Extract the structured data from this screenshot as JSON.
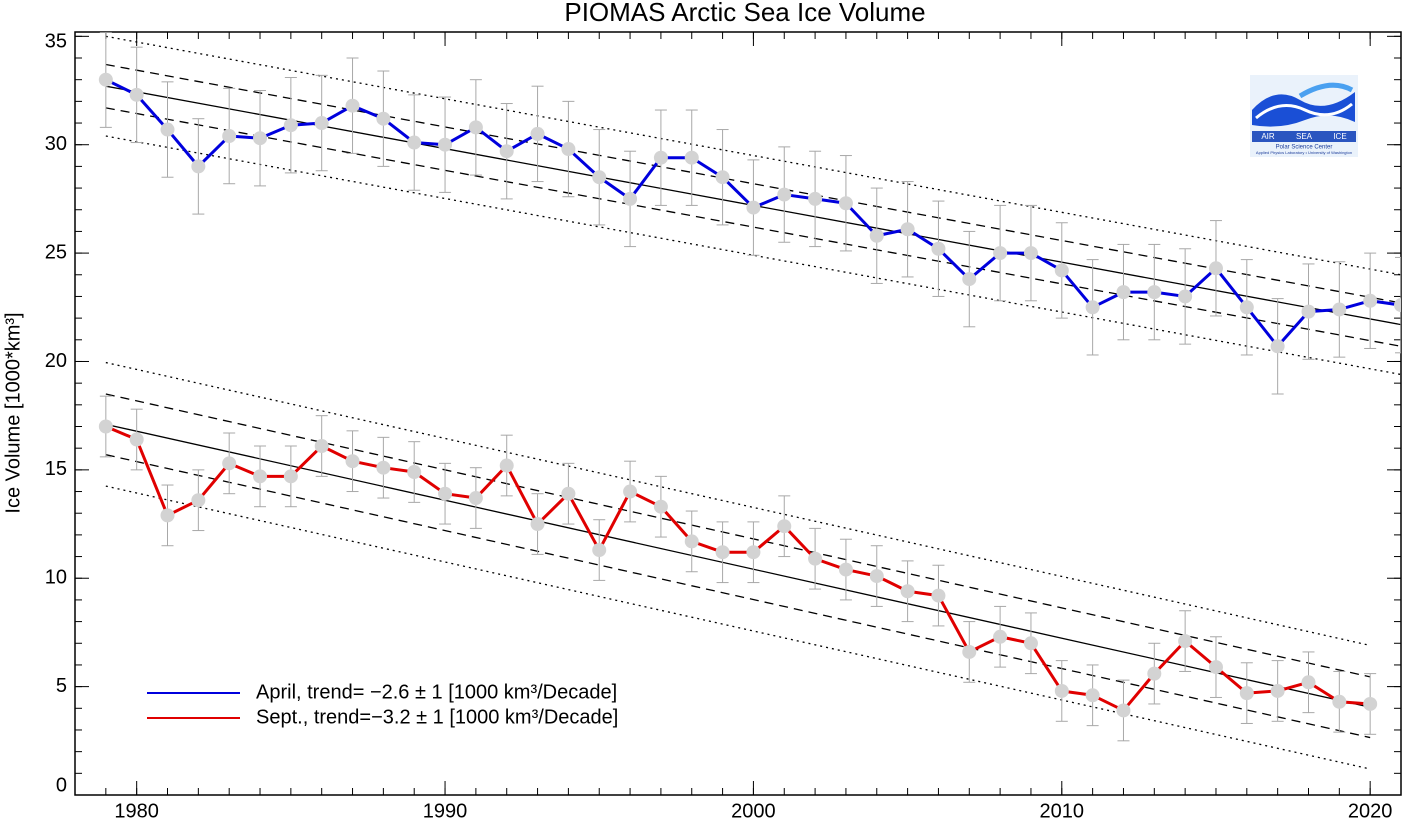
{
  "chart_data": {
    "type": "line",
    "title": "PIOMAS Arctic Sea Ice Volume",
    "y_label": "Ice Volume [1000*km³]",
    "xlim": [
      1978,
      2021
    ],
    "xticks": [
      1980,
      1990,
      2000,
      2010,
      2020
    ],
    "x_minor_step": 1,
    "ylim": [
      0,
      35.2
    ],
    "yticks": [
      0,
      5,
      10,
      15,
      20,
      25,
      30,
      35
    ],
    "y_minor_step": 1,
    "legend": "lower left",
    "marker_color": "#d3d3d3",
    "error_color": "#a8a8a8",
    "series": [
      {
        "name": "April, trend= −2.6 ± 1 [1000 km³/Decade]",
        "color": "#0000dd",
        "x": [
          1979,
          1980,
          1981,
          1982,
          1983,
          1984,
          1985,
          1986,
          1987,
          1988,
          1989,
          1990,
          1991,
          1992,
          1993,
          1994,
          1995,
          1996,
          1997,
          1998,
          1999,
          2000,
          2001,
          2002,
          2003,
          2004,
          2005,
          2006,
          2007,
          2008,
          2009,
          2010,
          2011,
          2012,
          2013,
          2014,
          2015,
          2016,
          2017,
          2018,
          2019,
          2020,
          2021
        ],
        "values": [
          33.0,
          32.3,
          30.7,
          29.0,
          30.4,
          30.3,
          30.9,
          31.0,
          31.8,
          31.2,
          30.1,
          30.0,
          30.8,
          29.7,
          30.5,
          29.8,
          28.5,
          27.5,
          29.4,
          29.4,
          28.5,
          27.1,
          27.7,
          27.5,
          27.3,
          25.8,
          26.1,
          25.2,
          23.8,
          25.0,
          25.0,
          24.2,
          22.5,
          23.2,
          23.2,
          23.0,
          24.3,
          22.5,
          20.7,
          22.3,
          22.4,
          22.8,
          22.6
        ],
        "errors": [
          2.2,
          2.2,
          2.2,
          2.2,
          2.2,
          2.2,
          2.2,
          2.2,
          2.2,
          2.2,
          2.2,
          2.2,
          2.2,
          2.2,
          2.2,
          2.2,
          2.2,
          2.2,
          2.2,
          2.2,
          2.2,
          2.2,
          2.2,
          2.2,
          2.2,
          2.2,
          2.2,
          2.2,
          2.2,
          2.2,
          2.2,
          2.2,
          2.2,
          2.2,
          2.2,
          2.2,
          2.2,
          2.2,
          2.2,
          2.2,
          2.2,
          2.2,
          2.2
        ],
        "trend_x": [
          1979,
          2021
        ],
        "trend_y": [
          32.7,
          21.7
        ],
        "band_inner": 1.0,
        "band_outer": 2.3
      },
      {
        "name": "Sept., trend=−3.2 ± 1 [1000 km³/Decade]",
        "color": "#e00000",
        "x": [
          1979,
          1980,
          1981,
          1982,
          1983,
          1984,
          1985,
          1986,
          1987,
          1988,
          1989,
          1990,
          1991,
          1992,
          1993,
          1994,
          1995,
          1996,
          1997,
          1998,
          1999,
          2000,
          2001,
          2002,
          2003,
          2004,
          2005,
          2006,
          2007,
          2008,
          2009,
          2010,
          2011,
          2012,
          2013,
          2014,
          2015,
          2016,
          2017,
          2018,
          2019,
          2020
        ],
        "values": [
          17.0,
          16.4,
          12.9,
          13.6,
          15.3,
          14.7,
          14.7,
          16.1,
          15.4,
          15.1,
          14.9,
          13.9,
          13.7,
          15.2,
          12.5,
          13.9,
          11.3,
          14.0,
          13.3,
          11.7,
          11.2,
          11.2,
          12.4,
          10.9,
          10.4,
          10.1,
          9.4,
          9.2,
          6.6,
          7.3,
          7.0,
          4.8,
          4.6,
          3.9,
          5.6,
          7.1,
          5.9,
          4.7,
          4.8,
          5.2,
          4.3,
          4.2
        ],
        "errors": [
          1.4,
          1.4,
          1.4,
          1.4,
          1.4,
          1.4,
          1.4,
          1.4,
          1.4,
          1.4,
          1.4,
          1.4,
          1.4,
          1.4,
          1.4,
          1.4,
          1.4,
          1.4,
          1.4,
          1.4,
          1.4,
          1.4,
          1.4,
          1.4,
          1.4,
          1.4,
          1.4,
          1.4,
          1.4,
          1.4,
          1.4,
          1.4,
          1.4,
          1.4,
          1.4,
          1.4,
          1.4,
          1.4,
          1.4,
          1.4,
          1.4,
          1.4
        ],
        "trend_x": [
          1979,
          2020
        ],
        "trend_y": [
          17.1,
          4.05
        ],
        "band_inner": 1.4,
        "band_outer": 2.85
      }
    ]
  },
  "logo": {
    "air": "AIR",
    "sea": "SEA",
    "ice": "ICE",
    "center": "Polar Science Center",
    "lab": "Applied Physics Laboratory • University of Washington"
  }
}
